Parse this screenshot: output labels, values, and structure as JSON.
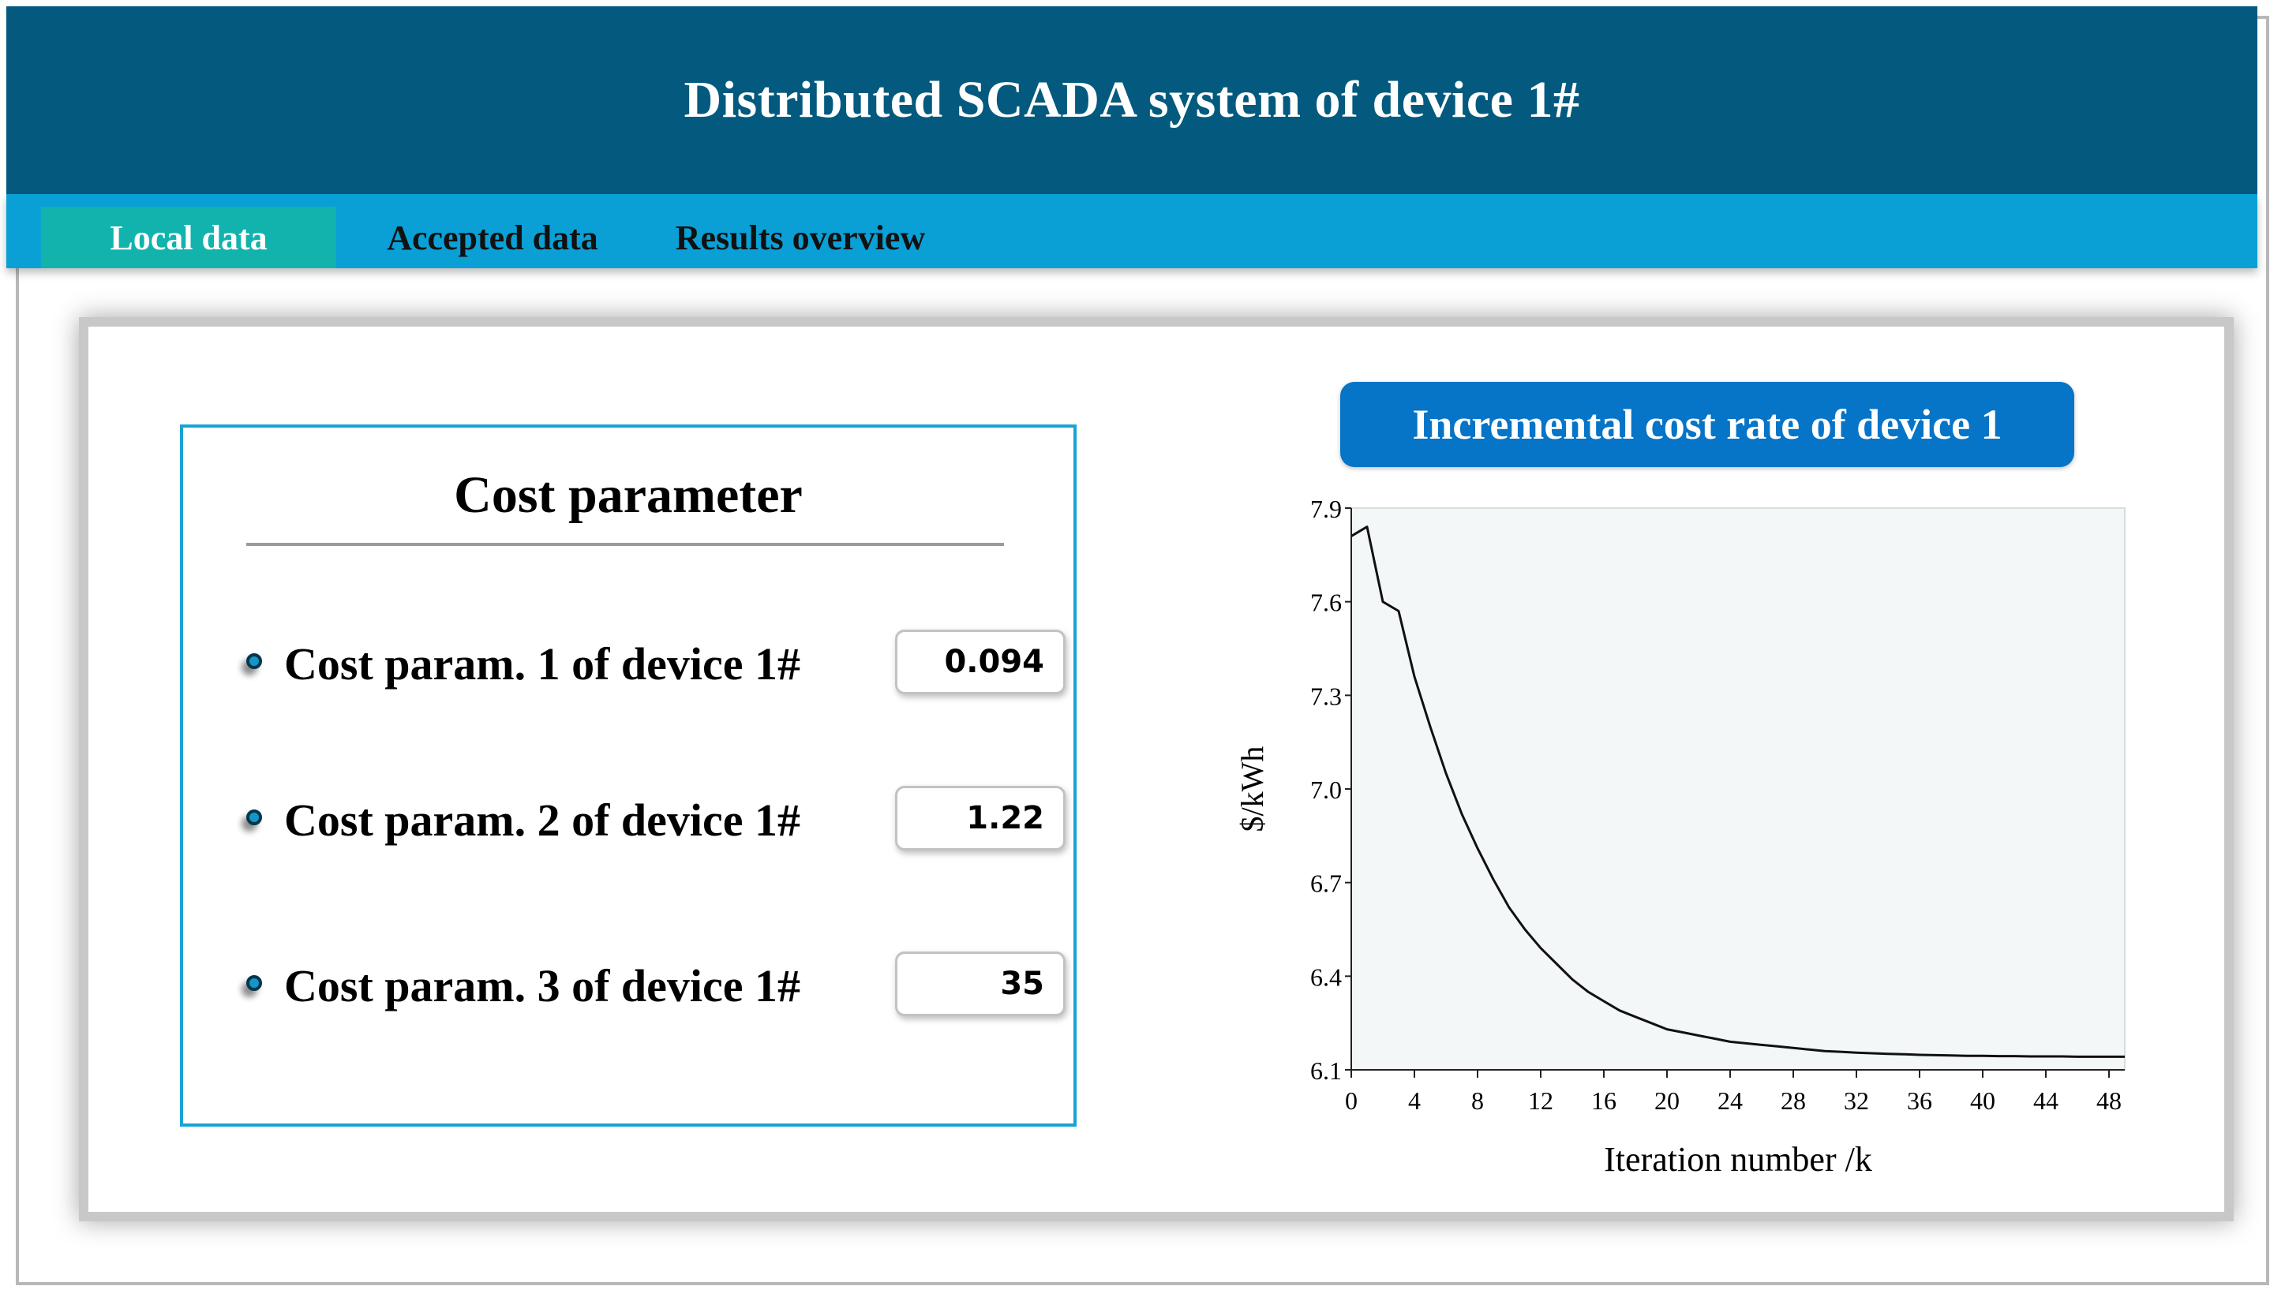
{
  "header": {
    "title": "Distributed SCADA system of device 1#"
  },
  "tabs": [
    {
      "label": "Local data",
      "active": true
    },
    {
      "label": "Accepted data",
      "active": false
    },
    {
      "label": "Results overview",
      "active": false
    }
  ],
  "cost_panel": {
    "title": "Cost parameter",
    "params": [
      {
        "label": "Cost param. 1 of device 1#",
        "value": "0.094"
      },
      {
        "label": "Cost param. 2 of device 1#",
        "value": "1.22"
      },
      {
        "label": "Cost param. 3 of device 1#",
        "value": "35"
      }
    ]
  },
  "chart_title": "Incremental cost rate of device 1",
  "colors": {
    "header": "#035a7e",
    "tabbar": "#0aa0d6",
    "active_tab": "#12b3ad",
    "accent": "#0674c7",
    "plot_bg": "#f3f7f8"
  },
  "chart_data": {
    "type": "line",
    "xlabel": "Iteration number /k",
    "ylabel": "$/kWh",
    "xlim": [
      0,
      49
    ],
    "ylim": [
      6.1,
      7.9
    ],
    "xticks": [
      0,
      4,
      8,
      12,
      16,
      20,
      24,
      28,
      32,
      36,
      40,
      44,
      48
    ],
    "yticks": [
      6.1,
      6.4,
      6.7,
      7.0,
      7.3,
      7.6,
      7.9
    ],
    "grid": false,
    "series": [
      {
        "x": [
          0,
          1,
          2,
          3,
          4,
          5,
          6,
          7,
          8,
          9,
          10,
          11,
          12,
          13,
          14,
          15,
          16,
          17,
          18,
          19,
          20,
          21,
          22,
          23,
          24,
          25,
          26,
          27,
          28,
          29,
          30,
          31,
          32,
          33,
          34,
          35,
          36,
          37,
          38,
          39,
          40,
          41,
          42,
          43,
          44,
          45,
          46,
          47,
          48,
          49
        ],
        "values": [
          7.81,
          7.84,
          7.6,
          7.57,
          7.36,
          7.2,
          7.05,
          6.92,
          6.81,
          6.71,
          6.62,
          6.55,
          6.49,
          6.44,
          6.39,
          6.35,
          6.32,
          6.29,
          6.27,
          6.25,
          6.23,
          6.22,
          6.21,
          6.2,
          6.19,
          6.185,
          6.18,
          6.175,
          6.17,
          6.165,
          6.16,
          6.158,
          6.155,
          6.153,
          6.151,
          6.15,
          6.148,
          6.147,
          6.146,
          6.145,
          6.145,
          6.144,
          6.144,
          6.143,
          6.143,
          6.143,
          6.142,
          6.142,
          6.142,
          6.142
        ]
      }
    ]
  }
}
